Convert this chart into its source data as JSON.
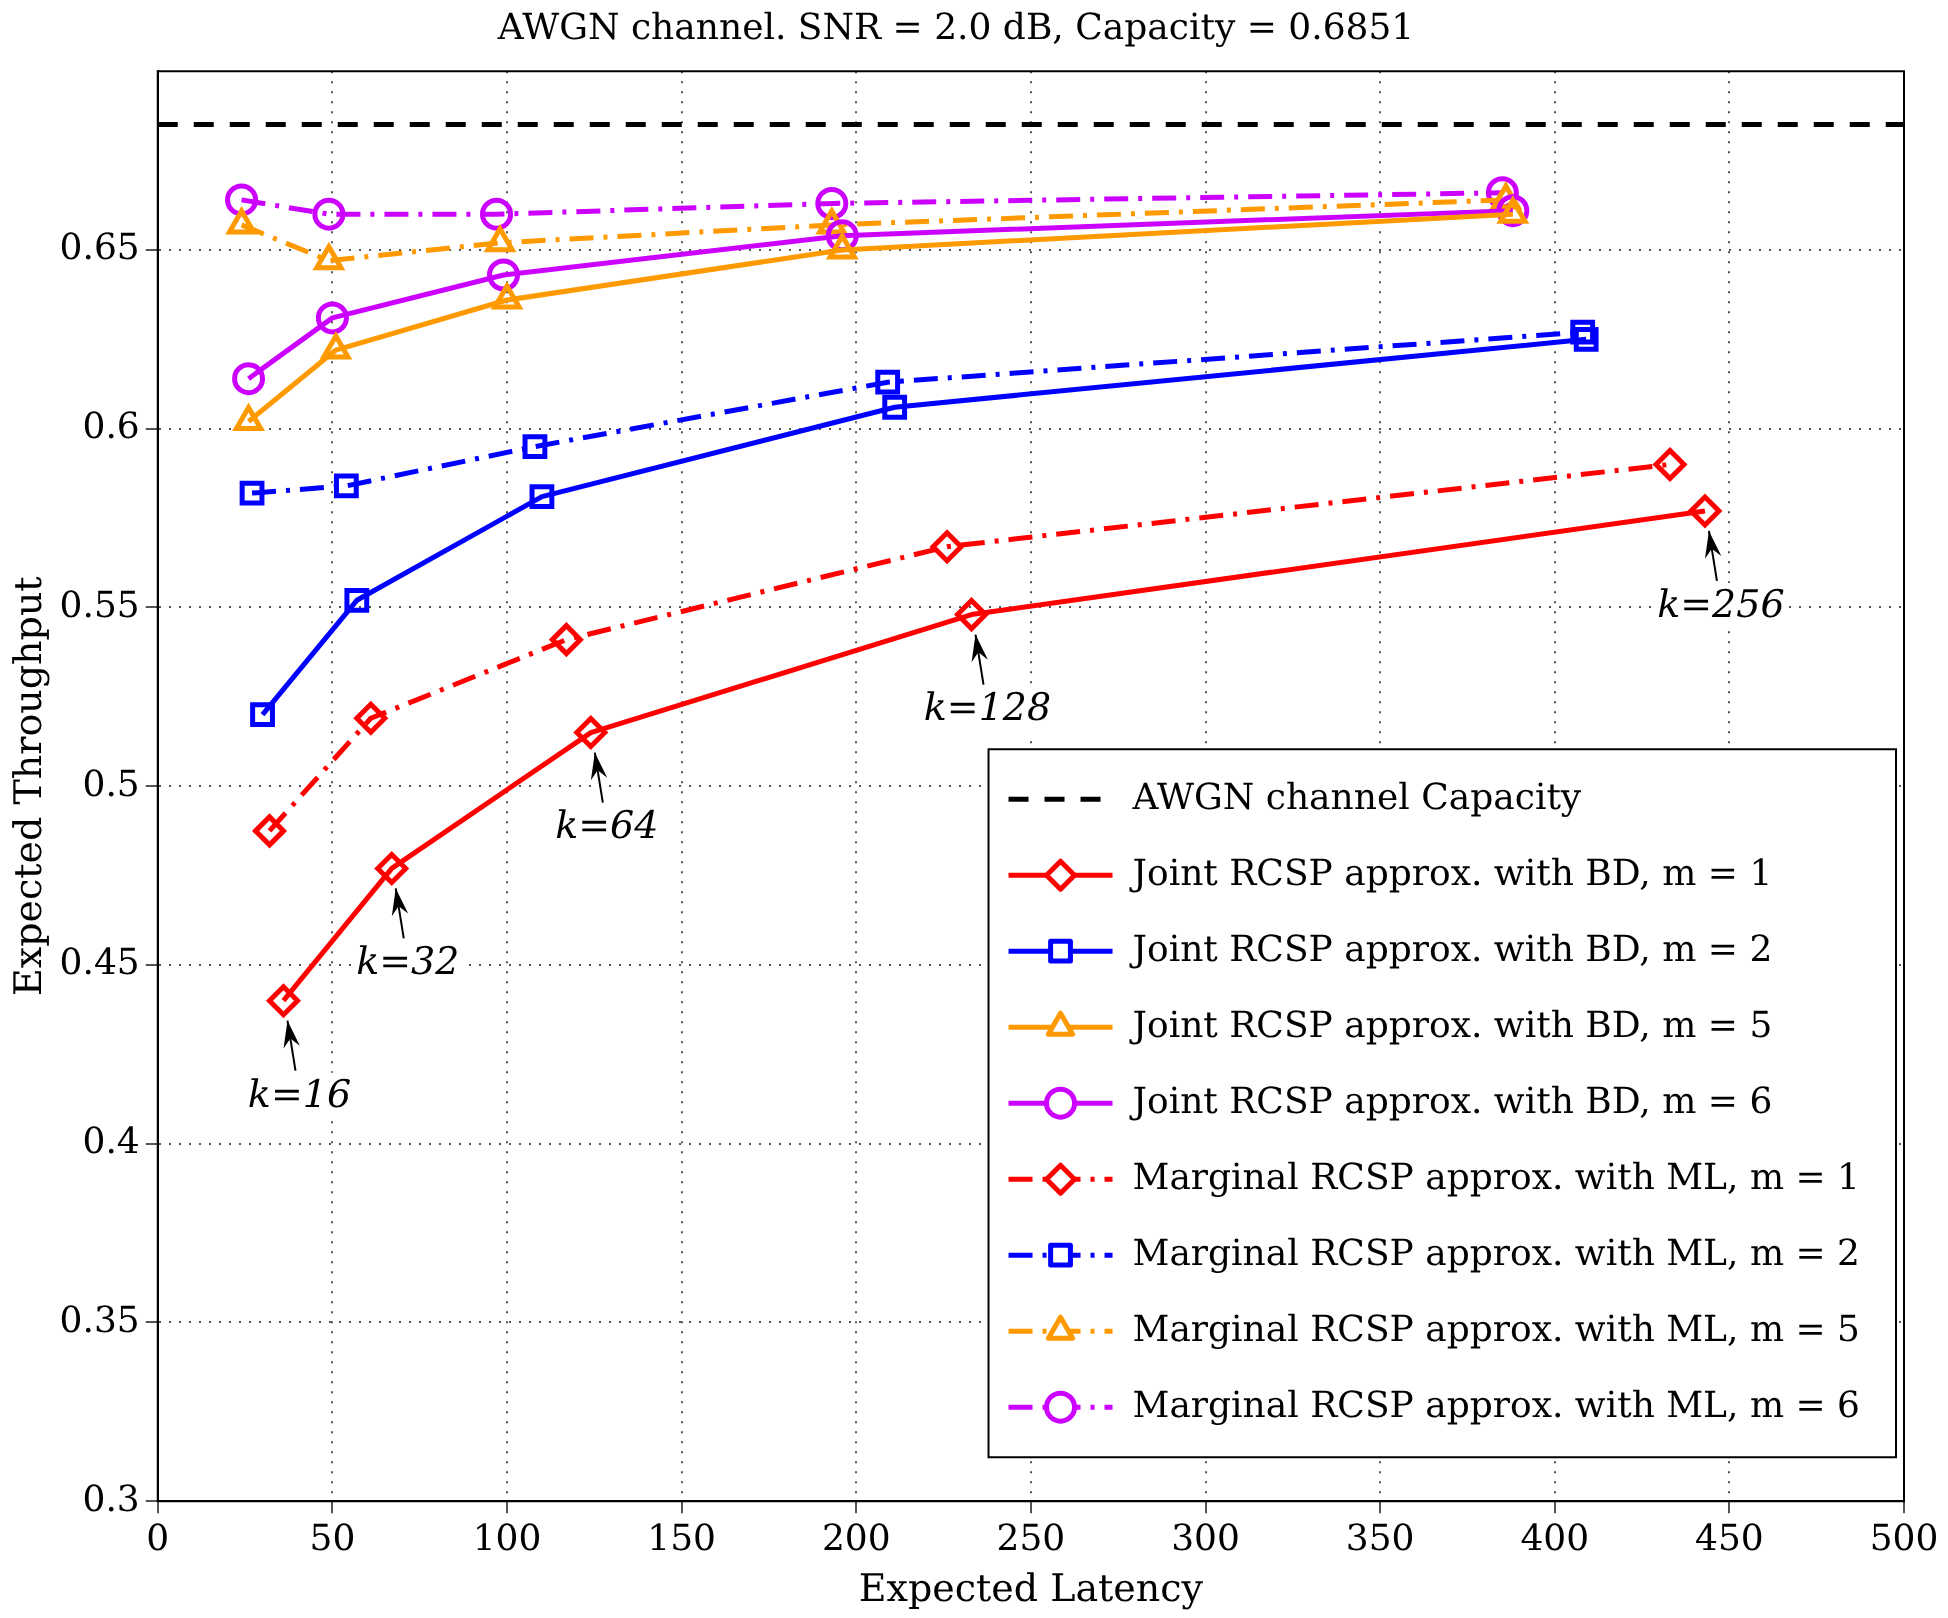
{
  "chart_data": {
    "type": "line",
    "title": "AWGN channel. SNR = 2.0 dB, Capacity = 0.6851",
    "xlabel": "Expected Latency",
    "ylabel": "Expected Throughput",
    "xlim": [
      0,
      500
    ],
    "xticks": [
      0,
      50,
      100,
      150,
      200,
      250,
      300,
      350,
      400,
      450,
      500
    ],
    "ylim": [
      0.3,
      0.7
    ],
    "yticks": [
      0.3,
      0.35,
      0.4,
      0.45,
      0.5,
      0.55,
      0.6,
      0.65
    ],
    "grid": true,
    "legend": "bottom right",
    "series": [
      {
        "name": "AWGN channel Capacity",
        "color": "#000000",
        "x": [
          0,
          500
        ],
        "values": [
          0.6851,
          0.6851
        ],
        "marker": "none",
        "line_style": "dashed"
      },
      {
        "name": "Joint RCSP approx. with BD, m = 1",
        "color": "#ff0000",
        "x": [
          36,
          67,
          124,
          233,
          443
        ],
        "values": [
          0.44,
          0.477,
          0.515,
          0.548,
          0.577
        ],
        "marker": "diamond",
        "line_style": "solid"
      },
      {
        "name": "Joint RCSP approx. with BD, m = 2",
        "color": "#0000ff",
        "x": [
          30,
          57,
          110,
          211,
          409
        ],
        "values": [
          0.52,
          0.552,
          0.581,
          0.606,
          0.625
        ],
        "marker": "square",
        "line_style": "solid"
      },
      {
        "name": "Joint RCSP approx. with BD, m = 5",
        "color": "#ff9900",
        "x": [
          26,
          51,
          100,
          196,
          388
        ],
        "values": [
          0.602,
          0.622,
          0.636,
          0.65,
          0.66
        ],
        "marker": "triangle",
        "line_style": "solid"
      },
      {
        "name": "Joint RCSP approx. with BD, m = 6",
        "color": "#cc00ff",
        "x": [
          26,
          50,
          99,
          196,
          388
        ],
        "values": [
          0.614,
          0.631,
          0.643,
          0.654,
          0.661
        ],
        "marker": "circle",
        "line_style": "solid"
      },
      {
        "name": "Marginal RCSP approx. with ML, m = 1",
        "color": "#ff0000",
        "x": [
          32,
          61,
          117,
          226,
          433
        ],
        "values": [
          0.4875,
          0.519,
          0.541,
          0.567,
          0.59
        ],
        "marker": "diamond",
        "line_style": "dashdot"
      },
      {
        "name": "Marginal RCSP approx. with ML, m = 2",
        "color": "#0000ff",
        "x": [
          27,
          54,
          108,
          209,
          408
        ],
        "values": [
          0.582,
          0.584,
          0.595,
          0.613,
          0.627
        ],
        "marker": "square",
        "line_style": "dashdot"
      },
      {
        "name": "Marginal RCSP approx. with ML, m = 5",
        "color": "#ff9900",
        "x": [
          24,
          49,
          98,
          193,
          386
        ],
        "values": [
          0.657,
          0.647,
          0.652,
          0.657,
          0.664
        ],
        "marker": "triangle",
        "line_style": "dashdot"
      },
      {
        "name": "Marginal RCSP approx. with ML, m = 6",
        "color": "#cc00ff",
        "x": [
          24,
          49,
          97,
          193,
          385
        ],
        "values": [
          0.664,
          0.66,
          0.66,
          0.663,
          0.666
        ],
        "marker": "circle",
        "line_style": "dashdot"
      }
    ],
    "annotations": [
      {
        "text": "k=16",
        "x": 36,
        "y": 0.44
      },
      {
        "text": "k=32",
        "x": 67,
        "y": 0.477
      },
      {
        "text": "k=64",
        "x": 124,
        "y": 0.515
      },
      {
        "text": "k=128",
        "x": 233,
        "y": 0.548
      },
      {
        "text": "k=256",
        "x": 443,
        "y": 0.577
      }
    ]
  }
}
